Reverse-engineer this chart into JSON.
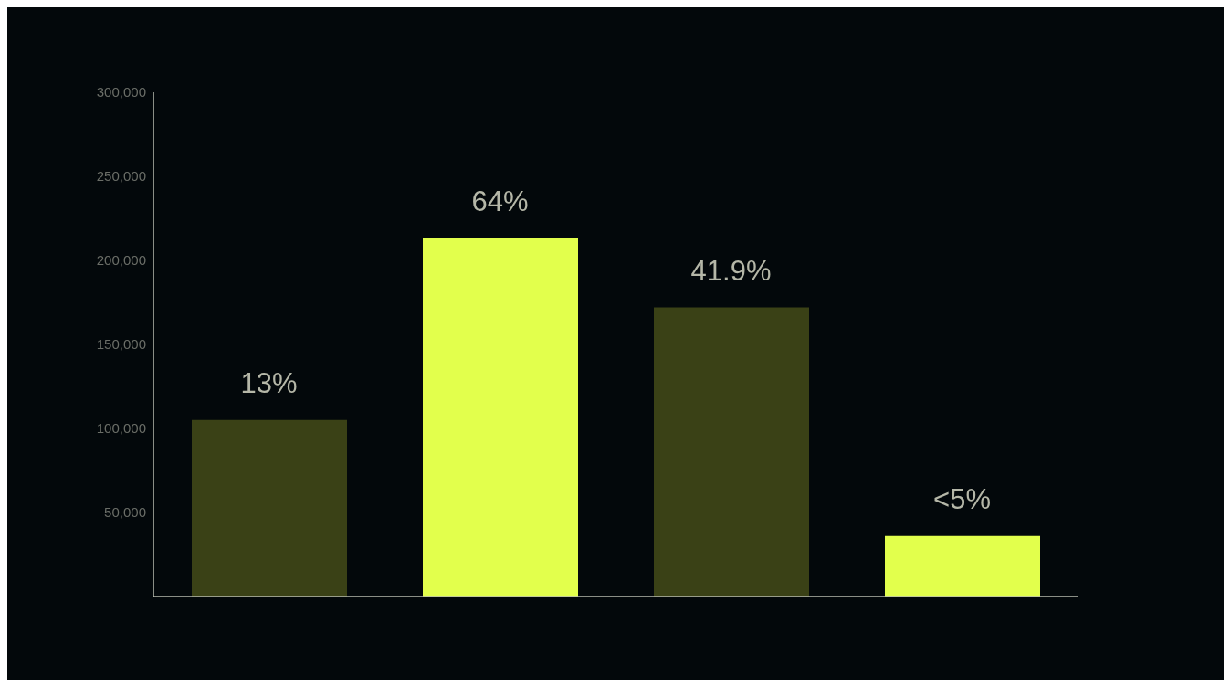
{
  "chart_data": {
    "type": "bar",
    "categories": [
      null,
      null,
      null,
      null
    ],
    "values": [
      105000,
      213000,
      172000,
      36000
    ],
    "colors": [
      "#3a4116",
      "#e2ff4c",
      "#3a4116",
      "#e2ff4c"
    ],
    "annotations": [
      {
        "text": "13%",
        "y": 105000
      },
      {
        "text": "64%",
        "y": 213000
      },
      {
        "text": "41.9%",
        "y": 172000
      },
      {
        "text": "<5%",
        "y": 36000
      }
    ],
    "ylim": [
      0,
      300000
    ],
    "yticks": [
      {
        "value": 50000,
        "label": "50,000"
      },
      {
        "value": 100000,
        "label": "100,000"
      },
      {
        "value": 150000,
        "label": "150,000"
      },
      {
        "value": 200000,
        "label": "200,000"
      },
      {
        "value": 250000,
        "label": "250,000"
      },
      {
        "value": 300000,
        "label": "300,000"
      }
    ],
    "grid": false,
    "legend": false
  }
}
